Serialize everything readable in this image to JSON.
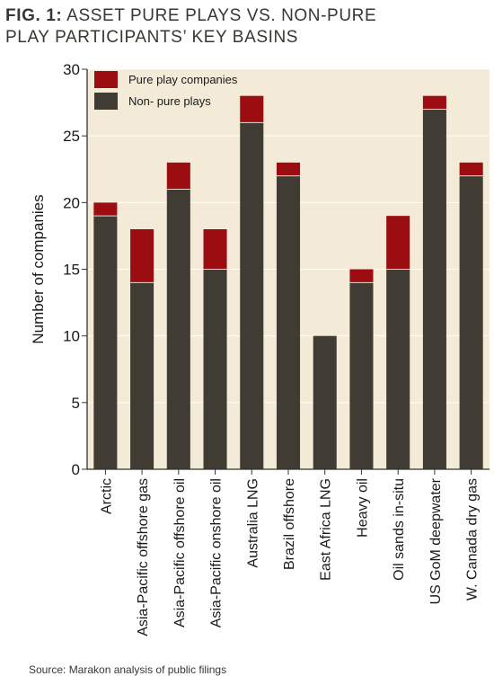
{
  "figure": {
    "label": "FIG. 1:",
    "title_line1": "ASSET PURE PLAYS VS. NON-PURE",
    "title_line2": "PLAY PARTICIPANTS’ KEY BASINS",
    "source": "Source:  Marakon analysis of public filings"
  },
  "colors": {
    "background": "#f4ead8",
    "pure": "#9b0d10",
    "non_pure": "#403c34",
    "gridline": "#ffffff"
  },
  "chart_data": {
    "type": "bar",
    "stacked": true,
    "title": "ASSET PURE PLAYS VS. NON-PURE PLAY PARTICIPANTS’ KEY BASINS",
    "xlabel": "",
    "ylabel": "Number of companies",
    "ylim": [
      0,
      30
    ],
    "yticks": [
      0,
      5,
      10,
      15,
      20,
      25,
      30
    ],
    "grid": "horizontal",
    "legend_position": "top-left",
    "categories": [
      "Arctic",
      "Asia-Pacific offshore gas",
      "Asia-Pacific offshore oil",
      "Asia-Pacific onshore oil",
      "Australia LNG",
      "Brazil offshore",
      "East Africa LNG",
      "Heavy oil",
      "Oil sands in-situ",
      "US GoM deepwater",
      "W. Canada dry gas"
    ],
    "series": [
      {
        "name": "Non- pure plays",
        "color": "#403c34",
        "values": [
          19,
          14,
          21,
          15,
          26,
          22,
          10,
          14,
          15,
          27,
          22
        ]
      },
      {
        "name": "Pure play companies",
        "color": "#9b0d10",
        "values": [
          1,
          4,
          2,
          3,
          2,
          1,
          0,
          1,
          4,
          1,
          1
        ]
      }
    ],
    "legend": [
      "Pure play companies",
      "Non- pure plays"
    ]
  }
}
